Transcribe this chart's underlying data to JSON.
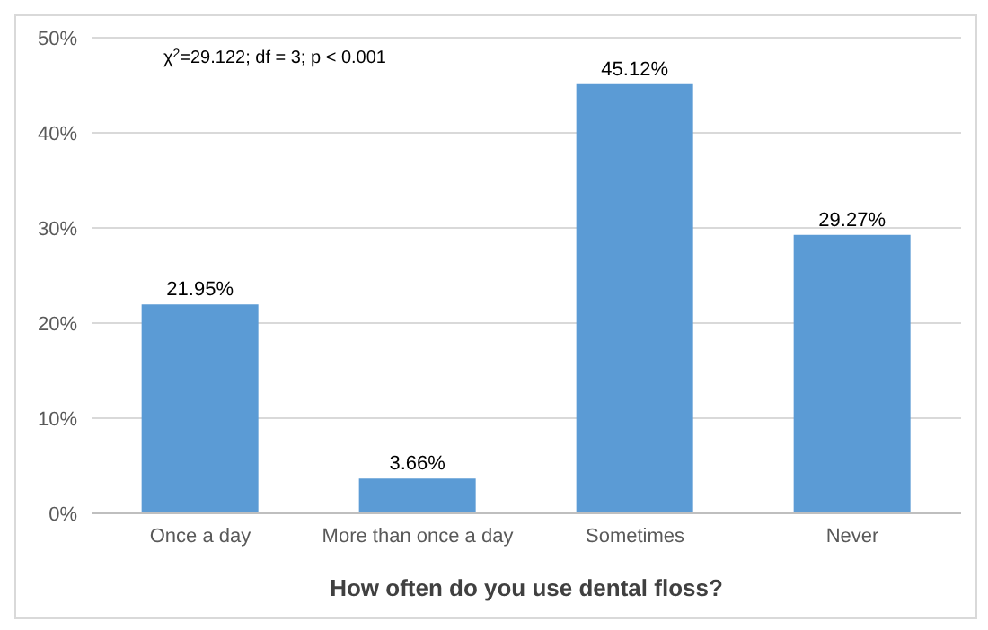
{
  "chart_data": {
    "type": "bar",
    "categories": [
      "Once a day",
      "More than once a day",
      "Sometimes",
      "Never"
    ],
    "values": [
      21.95,
      3.66,
      45.12,
      29.27
    ],
    "value_labels": [
      "21.95%",
      "3.66%",
      "45.12%",
      "29.27%"
    ],
    "color": "#5b9bd5",
    "xlabel": "How often do you use dental floss?",
    "annotations": [
      "χ$^{2}$=29.122; df = 3; p < 0.001"
    ],
    "ylim": [
      0,
      50
    ],
    "yticks": [
      {
        "value": 0,
        "label": "0%"
      },
      {
        "value": 10,
        "label": "10%"
      },
      {
        "value": 20,
        "label": "20%"
      },
      {
        "value": 30,
        "label": "30%"
      },
      {
        "value": 40,
        "label": "40%"
      },
      {
        "value": 50,
        "label": "50%"
      }
    ],
    "grid": "y"
  }
}
